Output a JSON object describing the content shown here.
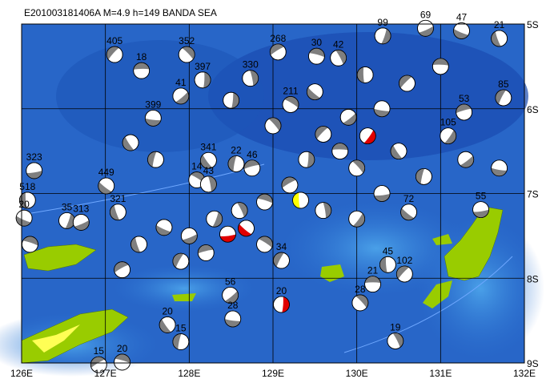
{
  "chart_data": {
    "type": "map",
    "title": "E201003181406A M=4.9 h=149 BANDA SEA",
    "xlim": [
      126,
      132
    ],
    "ylim": [
      -9,
      -5
    ],
    "xticks": [
      {
        "value": 126,
        "label": "126E"
      },
      {
        "value": 127,
        "label": "127E"
      },
      {
        "value": 128,
        "label": "128E"
      },
      {
        "value": 129,
        "label": "129E"
      },
      {
        "value": 130,
        "label": "130E"
      },
      {
        "value": 131,
        "label": "131E"
      },
      {
        "value": 132,
        "label": "132E"
      }
    ],
    "yticks": [
      {
        "value": -5,
        "label": "5S"
      },
      {
        "value": -6,
        "label": "6S"
      },
      {
        "value": -7,
        "label": "7S"
      },
      {
        "value": -8,
        "label": "8S"
      },
      {
        "value": -9,
        "label": "9S"
      }
    ],
    "grid": true,
    "ball_color": "#7f7f7f",
    "events": [
      {
        "lon": 126.15,
        "lat": -6.73,
        "depth": 323
      },
      {
        "lon": 127.01,
        "lat": -6.91,
        "depth": 449
      },
      {
        "lon": 126.07,
        "lat": -7.08,
        "depth": 518
      },
      {
        "lon": 127.11,
        "lat": -5.36,
        "depth": 405
      },
      {
        "lon": 127.43,
        "lat": -5.55,
        "depth": 18
      },
      {
        "lon": 127.97,
        "lat": -5.36,
        "depth": 352
      },
      {
        "lon": 128.16,
        "lat": -5.66,
        "depth": 397
      },
      {
        "lon": 127.9,
        "lat": -5.85,
        "depth": 41
      },
      {
        "lon": 127.57,
        "lat": -6.11,
        "depth": 399
      },
      {
        "lon": 128.23,
        "lat": -6.61,
        "depth": 341
      },
      {
        "lon": 128.56,
        "lat": -6.65,
        "depth": 22
      },
      {
        "lon": 129.06,
        "lat": -5.33,
        "depth": 268
      },
      {
        "lon": 129.52,
        "lat": -5.38,
        "depth": 30
      },
      {
        "lon": 129.78,
        "lat": -5.4,
        "depth": 42
      },
      {
        "lon": 130.31,
        "lat": -5.14,
        "depth": 99
      },
      {
        "lon": 130.82,
        "lat": -5.05,
        "depth": 69
      },
      {
        "lon": 131.25,
        "lat": -5.08,
        "depth": 47
      },
      {
        "lon": 131.7,
        "lat": -5.17,
        "depth": 21
      },
      {
        "lon": 131.75,
        "lat": -5.87,
        "depth": 85
      },
      {
        "lon": 131.28,
        "lat": -6.04,
        "depth": 53
      },
      {
        "lon": 129.21,
        "lat": -5.95,
        "depth": 211
      },
      {
        "lon": 128.73,
        "lat": -5.64,
        "depth": 330
      },
      {
        "lon": 131.09,
        "lat": -6.32,
        "depth": 105
      },
      {
        "lon": 131.48,
        "lat": -7.19,
        "depth": 55
      },
      {
        "lon": 130.62,
        "lat": -7.22,
        "depth": 72
      },
      {
        "lon": 130.37,
        "lat": -7.84,
        "depth": 45
      },
      {
        "lon": 130.57,
        "lat": -7.95,
        "depth": 102
      },
      {
        "lon": 130.19,
        "lat": -8.07,
        "depth": 21
      },
      {
        "lon": 130.04,
        "lat": -8.29,
        "depth": 28
      },
      {
        "lon": 129.1,
        "lat": -8.31,
        "depth": 20,
        "color": "#e00000"
      },
      {
        "lon": 128.49,
        "lat": -8.2,
        "depth": 56
      },
      {
        "lon": 128.52,
        "lat": -8.48,
        "depth": 28
      },
      {
        "lon": 127.74,
        "lat": -8.55,
        "depth": 20
      },
      {
        "lon": 127.9,
        "lat": -8.75,
        "depth": 15
      },
      {
        "lon": 126.92,
        "lat": -9.02,
        "depth": 15
      },
      {
        "lon": 127.2,
        "lat": -8.99,
        "depth": 20
      },
      {
        "lon": 130.46,
        "lat": -8.74,
        "depth": 19
      },
      {
        "lon": 126.54,
        "lat": -7.32,
        "depth": 35
      },
      {
        "lon": 126.71,
        "lat": -7.34,
        "depth": 313
      },
      {
        "lon": 126.03,
        "lat": -7.29,
        "depth": 20
      },
      {
        "lon": 127.15,
        "lat": -7.22,
        "depth": 321
      },
      {
        "lon": 129.1,
        "lat": -7.79,
        "depth": 34
      },
      {
        "lon": 128.75,
        "lat": -6.7,
        "depth": 46
      },
      {
        "lon": 128.09,
        "lat": -6.84,
        "depth": 14
      },
      {
        "lon": 128.23,
        "lat": -6.89,
        "depth": 43
      },
      {
        "lon": 130.13,
        "lat": -6.32,
        "color": "#e00000"
      },
      {
        "lon": 128.46,
        "lat": -7.48,
        "color": "#e00000"
      },
      {
        "lon": 128.68,
        "lat": -7.41,
        "color": "#e00000"
      },
      {
        "lon": 129.33,
        "lat": -7.08,
        "color": "#ffff00"
      },
      {
        "lon": 129.6,
        "lat": -6.3
      },
      {
        "lon": 129.8,
        "lat": -6.5
      },
      {
        "lon": 130.0,
        "lat": -6.7
      },
      {
        "lon": 129.4,
        "lat": -6.6
      },
      {
        "lon": 129.9,
        "lat": -6.1
      },
      {
        "lon": 130.3,
        "lat": -6.0
      },
      {
        "lon": 130.5,
        "lat": -6.5
      },
      {
        "lon": 130.8,
        "lat": -6.8
      },
      {
        "lon": 129.2,
        "lat": -6.9
      },
      {
        "lon": 128.9,
        "lat": -7.1
      },
      {
        "lon": 128.6,
        "lat": -7.2
      },
      {
        "lon": 128.3,
        "lat": -7.3
      },
      {
        "lon": 128.0,
        "lat": -7.5
      },
      {
        "lon": 127.7,
        "lat": -7.4
      },
      {
        "lon": 127.4,
        "lat": -7.6
      },
      {
        "lon": 127.9,
        "lat": -7.8
      },
      {
        "lon": 128.2,
        "lat": -7.7
      },
      {
        "lon": 128.9,
        "lat": -7.6
      },
      {
        "lon": 129.6,
        "lat": -7.2
      },
      {
        "lon": 130.0,
        "lat": -7.3
      },
      {
        "lon": 130.3,
        "lat": -7.0
      },
      {
        "lon": 129.5,
        "lat": -5.8
      },
      {
        "lon": 130.1,
        "lat": -5.6
      },
      {
        "lon": 130.6,
        "lat": -5.7
      },
      {
        "lon": 131.0,
        "lat": -5.5
      },
      {
        "lon": 129.0,
        "lat": -6.2
      },
      {
        "lon": 128.5,
        "lat": -5.9
      },
      {
        "lon": 131.3,
        "lat": -6.6
      },
      {
        "lon": 131.7,
        "lat": -6.7
      },
      {
        "lon": 127.3,
        "lat": -6.4
      },
      {
        "lon": 127.6,
        "lat": -6.6
      },
      {
        "lon": 127.2,
        "lat": -7.9
      },
      {
        "lon": 126.1,
        "lat": -7.6
      }
    ]
  }
}
